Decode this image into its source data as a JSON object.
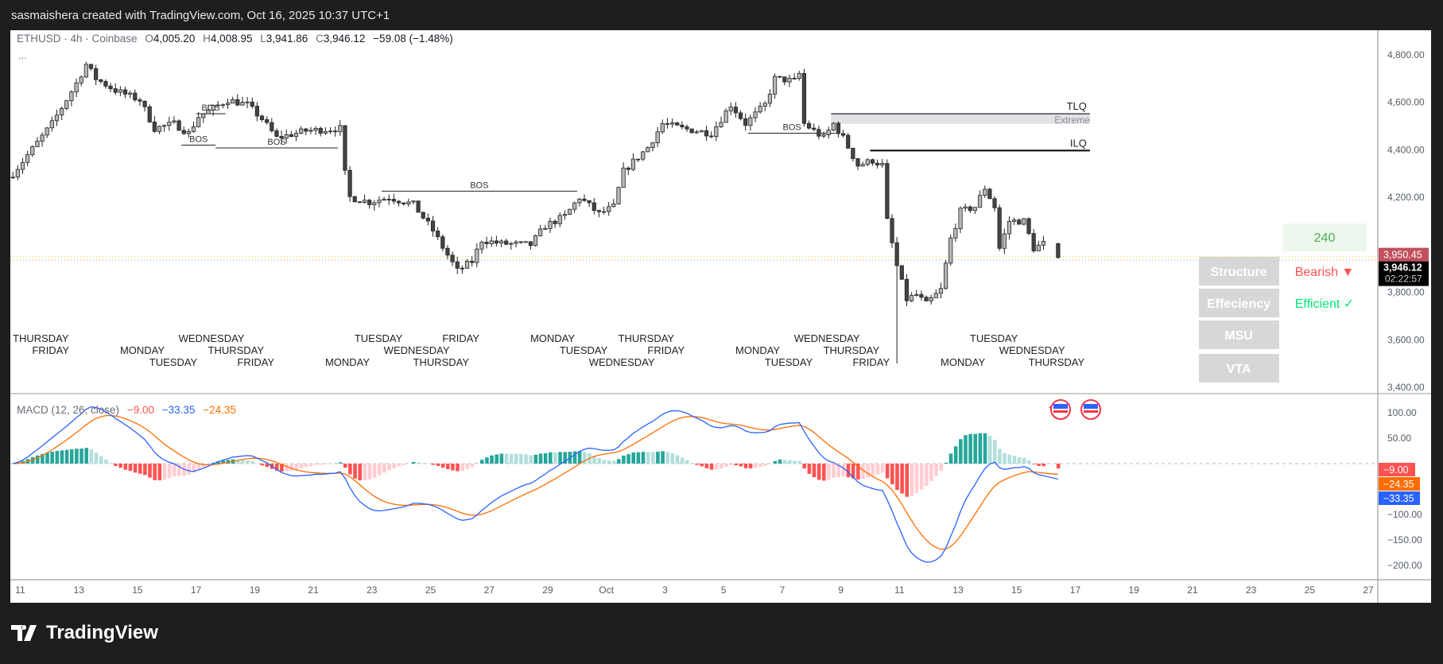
{
  "header": {
    "attribution": "sasmaishera created with TradingView.com, Oct 16, 2025 10:37 UTC+1"
  },
  "legend": {
    "symbol": "ETHUSD · 4h · Coinbase",
    "o_label": "O",
    "o": "4,005.20",
    "h_label": "H",
    "h": "4,008.95",
    "l_label": "L",
    "l": "3,941.86",
    "c_label": "C",
    "c": "3,946.12",
    "change": "−59.08 (−1.48%)",
    "more": "..."
  },
  "macd_legend": {
    "title": "MACD (12, 26, close)",
    "hist": "−9.00",
    "macd": "−33.35",
    "signal": "−24.35"
  },
  "colors": {
    "up_body": "#b8b8b8",
    "down_body": "#444444",
    "macd": "#2962ff",
    "signal": "#ff6d00",
    "hist_up": "#26a69a",
    "hist_up_light": "#b2dfdb",
    "hist_down": "#ff5252",
    "hist_down_light": "#ffcdd2",
    "bearish": "#ff5252",
    "efficient": "#00e676",
    "tf_green": "#4caf50"
  },
  "chart_data": [
    {
      "type": "candlestick",
      "symbol": "ETHUSD",
      "interval": "4h",
      "ylim": [
        3400,
        4800
      ],
      "y_ticks": [
        "4,800.00",
        "4,600.00",
        "4,400.00",
        "4,200.00",
        "3,800.00",
        "3,600.00",
        "3,400.00"
      ],
      "y_tick_values": [
        4800,
        4600,
        4400,
        4200,
        3800,
        3600,
        3400
      ],
      "close_path": [
        [
          "2025-09-10T16:00",
          4300
        ],
        [
          "2025-09-11T12:00",
          4430
        ],
        [
          "2025-09-12T00:00",
          4510
        ],
        [
          "2025-09-12T20:00",
          4680
        ],
        [
          "2025-09-13T04:00",
          4760
        ],
        [
          "2025-09-13T12:00",
          4700
        ],
        [
          "2025-09-14T04:00",
          4650
        ],
        [
          "2025-09-15T00:00",
          4610
        ],
        [
          "2025-09-15T12:00",
          4490
        ],
        [
          "2025-09-16T04:00",
          4510
        ],
        [
          "2025-09-16T16:00",
          4470
        ],
        [
          "2025-09-17T00:00",
          4540
        ],
        [
          "2025-09-18T00:00",
          4610
        ],
        [
          "2025-09-18T16:00",
          4590
        ],
        [
          "2025-09-19T04:00",
          4530
        ],
        [
          "2025-09-19T16:00",
          4450
        ],
        [
          "2025-09-20T16:00",
          4480
        ],
        [
          "2025-09-21T20:00",
          4490
        ],
        [
          "2025-09-22T00:00",
          4300
        ],
        [
          "2025-09-22T04:00",
          4200
        ],
        [
          "2025-09-22T20:00",
          4180
        ],
        [
          "2025-09-23T12:00",
          4200
        ],
        [
          "2025-09-24T08:00",
          4170
        ],
        [
          "2025-09-25T00:00",
          4060
        ],
        [
          "2025-09-25T08:00",
          3990
        ],
        [
          "2025-09-25T20:00",
          3890
        ],
        [
          "2025-09-26T08:00",
          3930
        ],
        [
          "2025-09-26T16:00",
          4020
        ],
        [
          "2025-09-27T08:00",
          4005
        ],
        [
          "2025-09-28T08:00",
          4000
        ],
        [
          "2025-09-28T20:00",
          4080
        ],
        [
          "2025-09-29T12:00",
          4120
        ],
        [
          "2025-09-30T00:00",
          4200
        ],
        [
          "2025-09-30T16:00",
          4130
        ],
        [
          "2025-10-01T04:00",
          4160
        ],
        [
          "2025-10-01T12:00",
          4310
        ],
        [
          "2025-10-02T08:00",
          4410
        ],
        [
          "2025-10-02T20:00",
          4510
        ],
        [
          "2025-10-03T12:00",
          4490
        ],
        [
          "2025-10-04T12:00",
          4470
        ],
        [
          "2025-10-05T04:00",
          4590
        ],
        [
          "2025-10-05T16:00",
          4510
        ],
        [
          "2025-10-06T08:00",
          4590
        ],
        [
          "2025-10-06T16:00",
          4700
        ],
        [
          "2025-10-07T08:00",
          4690
        ],
        [
          "2025-10-07T12:00",
          4720
        ],
        [
          "2025-10-07T16:00",
          4510
        ],
        [
          "2025-10-08T08:00",
          4450
        ],
        [
          "2025-10-08T16:00",
          4510
        ],
        [
          "2025-10-09T00:00",
          4450
        ],
        [
          "2025-10-09T12:00",
          4335
        ],
        [
          "2025-10-10T00:00",
          4355
        ],
        [
          "2025-10-10T08:00",
          4335
        ],
        [
          "2025-10-10T12:00",
          4100
        ],
        [
          "2025-10-10T20:00",
          3910
        ],
        [
          "2025-10-11T04:00",
          3770
        ],
        [
          "2025-10-11T12:00",
          3790
        ],
        [
          "2025-10-11T20:00",
          3750
        ],
        [
          "2025-10-12T08:00",
          3810
        ],
        [
          "2025-10-12T16:00",
          4025
        ],
        [
          "2025-10-13T00:00",
          4140
        ],
        [
          "2025-10-13T12:00",
          4160
        ],
        [
          "2025-10-13T20:00",
          4240
        ],
        [
          "2025-10-14T04:00",
          4160
        ],
        [
          "2025-10-14T08:00",
          3985
        ],
        [
          "2025-10-14T16:00",
          4100
        ],
        [
          "2025-10-15T04:00",
          4100
        ],
        [
          "2025-10-15T12:00",
          3985
        ],
        [
          "2025-10-15T20:00",
          4005
        ]
      ],
      "extreme_low": {
        "t": "2025-10-10T20:00",
        "price": 3500
      },
      "last_candle": {
        "t": "2025-10-16T08:00",
        "open": 4005.2,
        "high": 4008.95,
        "low": 3941.86,
        "close": 3946.12
      },
      "current_price": {
        "value": "3,946.12",
        "num": 3946.12,
        "countdown": "02:22:57"
      },
      "other_price": {
        "value": "3,950.45",
        "num": 3950.45
      },
      "annotations": [
        {
          "label": "BOS",
          "price": 4420,
          "from": "2025-09-16T12:00",
          "to": "2025-09-17T16:00"
        },
        {
          "label": "BOS",
          "price": 4552,
          "from": "2025-09-17T00:00",
          "to": "2025-09-18T00:00"
        },
        {
          "label": "BOS",
          "price": 4408,
          "from": "2025-09-17T16:00",
          "to": "2025-09-21T20:00"
        },
        {
          "label": "BOS",
          "price": 4226,
          "from": "2025-09-23T08:00",
          "to": "2025-09-30T00:00"
        },
        {
          "label": "BOS",
          "price": 4470,
          "from": "2025-10-05T20:00",
          "to": "2025-10-08T20:00"
        }
      ],
      "tlq": {
        "label": "TLQ",
        "price": 4552,
        "from": "2025-10-08T16:00",
        "to": "2025-10-17T12:00"
      },
      "extreme_zone": {
        "label": "Extreme",
        "top": 4552,
        "bottom": 4510,
        "from": "2025-10-08T16:00",
        "to": "2025-10-17T12:00"
      },
      "ilq": {
        "label": "ILQ",
        "price": 4397,
        "from": "2025-10-10T00:00",
        "to": "2025-10-17T12:00"
      },
      "weekday_labels": [
        [
          "2025-09-11",
          "THURSDAY"
        ],
        [
          "2025-09-12",
          "FRIDAY"
        ],
        [
          "2025-09-15",
          "MONDAY"
        ],
        [
          "2025-09-16",
          "TUESDAY"
        ],
        [
          "2025-09-17",
          "WEDNESDAY"
        ],
        [
          "2025-09-18",
          "THURSDAY"
        ],
        [
          "2025-09-19",
          "FRIDAY"
        ],
        [
          "2025-09-22",
          "MONDAY"
        ],
        [
          "2025-09-23",
          "TUESDAY"
        ],
        [
          "2025-09-24",
          "WEDNESDAY"
        ],
        [
          "2025-09-25",
          "THURSDAY"
        ],
        [
          "2025-09-26",
          "FRIDAY"
        ],
        [
          "2025-09-29",
          "MONDAY"
        ],
        [
          "2025-09-30",
          "TUESDAY"
        ],
        [
          "2025-10-01",
          "WEDNESDAY"
        ],
        [
          "2025-10-02",
          "THURSDAY"
        ],
        [
          "2025-10-03",
          "FRIDAY"
        ],
        [
          "2025-10-06",
          "MONDAY"
        ],
        [
          "2025-10-07",
          "TUESDAY"
        ],
        [
          "2025-10-08",
          "WEDNESDAY"
        ],
        [
          "2025-10-09",
          "THURSDAY"
        ],
        [
          "2025-10-10",
          "FRIDAY"
        ],
        [
          "2025-10-13",
          "MONDAY"
        ],
        [
          "2025-10-14",
          "TUESDAY"
        ],
        [
          "2025-10-15",
          "WEDNESDAY"
        ],
        [
          "2025-10-16",
          "THURSDAY"
        ]
      ]
    },
    {
      "type": "macd",
      "params": "12, 26, close",
      "ylim": [
        -220,
        130
      ],
      "y_ticks": [
        "100.00",
        "50.00",
        "−100.00",
        "−150.00",
        "−200.00"
      ],
      "y_tick_values": [
        100,
        50,
        -100,
        -150,
        -200
      ],
      "last": {
        "hist": -9.0,
        "macd": -33.35,
        "signal": -24.35
      }
    }
  ],
  "x_axis": {
    "ticks": [
      [
        "2025-09-11",
        "11"
      ],
      [
        "2025-09-13",
        "13"
      ],
      [
        "2025-09-15",
        "15"
      ],
      [
        "2025-09-17",
        "17"
      ],
      [
        "2025-09-19",
        "19"
      ],
      [
        "2025-09-21",
        "21"
      ],
      [
        "2025-09-23",
        "23"
      ],
      [
        "2025-09-25",
        "25"
      ],
      [
        "2025-09-27",
        "27"
      ],
      [
        "2025-09-29",
        "29"
      ],
      [
        "2025-10-01",
        "Oct"
      ],
      [
        "2025-10-03",
        "3"
      ],
      [
        "2025-10-05",
        "5"
      ],
      [
        "2025-10-07",
        "7"
      ],
      [
        "2025-10-09",
        "9"
      ],
      [
        "2025-10-11",
        "11"
      ],
      [
        "2025-10-13",
        "13"
      ],
      [
        "2025-10-15",
        "15"
      ],
      [
        "2025-10-17",
        "17"
      ],
      [
        "2025-10-19",
        "19"
      ],
      [
        "2025-10-21",
        "21"
      ],
      [
        "2025-10-23",
        "23"
      ],
      [
        "2025-10-25",
        "25"
      ],
      [
        "2025-10-27",
        "27"
      ]
    ]
  },
  "panel": {
    "timeframe": "240",
    "rows": [
      {
        "label": "Structure",
        "value": "Bearish ▼"
      },
      {
        "label": "Effeciency",
        "value": "Efficient ✓"
      },
      {
        "label": "MSU",
        "value": ""
      },
      {
        "label": "VTA",
        "value": ""
      }
    ]
  },
  "brand": {
    "name": "TradingView"
  }
}
